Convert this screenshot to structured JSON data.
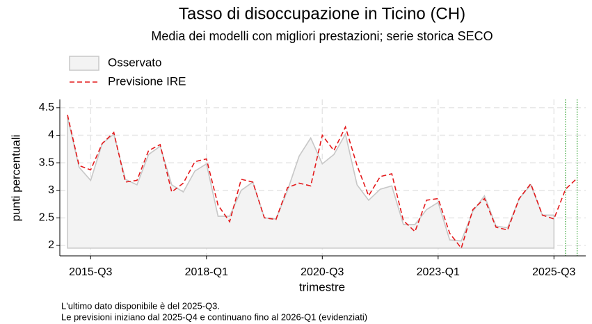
{
  "chart_data": {
    "type": "line",
    "title": "Tasso di disoccupazione in Ticino (CH)",
    "subtitle": "Media dei modelli con migliori prestazioni; serie storica SECO",
    "x_label": "trimestre",
    "y_label": "punti percentuali",
    "notes": [
      "L'ultimo dato disponibile è del 2025-Q3.",
      "Le previsioni iniziano dal 2025-Q4 e continuano fino al 2026-Q1 (evidenziati)"
    ],
    "categories": [
      null,
      null,
      "2015-Q3",
      null,
      null,
      null,
      null,
      null,
      null,
      null,
      null,
      null,
      "2018-Q1",
      null,
      null,
      null,
      null,
      null,
      null,
      null,
      null,
      null,
      "2020-Q3",
      null,
      null,
      null,
      null,
      null,
      null,
      null,
      null,
      null,
      "2023-Q1",
      null,
      null,
      null,
      null,
      null,
      null,
      null,
      null,
      null,
      "2025-Q3",
      null,
      null
    ],
    "series": [
      {
        "name": "Osservato",
        "color": "#c8c8c8",
        "fill": "#f3f3f3",
        "style": "area",
        "values": [
          4.33,
          3.42,
          3.18,
          3.85,
          4.02,
          3.2,
          3.1,
          3.65,
          3.8,
          3.1,
          2.97,
          3.35,
          3.48,
          2.53,
          2.53,
          3.0,
          3.15,
          2.5,
          2.48,
          3.0,
          3.62,
          3.95,
          3.48,
          3.65,
          4.02,
          3.1,
          2.82,
          3.02,
          3.08,
          2.38,
          2.38,
          2.65,
          2.78,
          2.1,
          2.08,
          2.62,
          2.9,
          2.35,
          2.32,
          2.85,
          3.1,
          2.55,
          2.55,
          null,
          null
        ]
      },
      {
        "name": "Previsione IRE",
        "color": "#e41a1c",
        "style": "dashed",
        "values": [
          4.37,
          3.45,
          3.37,
          3.85,
          4.05,
          3.15,
          3.18,
          3.72,
          3.83,
          2.97,
          3.13,
          3.52,
          3.57,
          2.73,
          2.43,
          3.2,
          3.15,
          2.5,
          2.47,
          3.05,
          3.13,
          3.08,
          4.0,
          3.72,
          4.15,
          3.45,
          2.9,
          3.25,
          3.3,
          2.45,
          2.25,
          2.82,
          2.85,
          2.22,
          1.95,
          2.65,
          2.85,
          2.33,
          2.28,
          2.85,
          3.12,
          2.55,
          2.48,
          3.02,
          3.22
        ]
      }
    ],
    "area_base": 1.95,
    "highlight": [
      43,
      44
    ],
    "highlight_color": "#2ca02c",
    "ylim": [
      1.81,
      4.65
    ],
    "yticks": [
      2,
      2.5,
      3,
      3.5,
      4,
      4.5
    ],
    "grid": true,
    "legend": "top-left"
  }
}
